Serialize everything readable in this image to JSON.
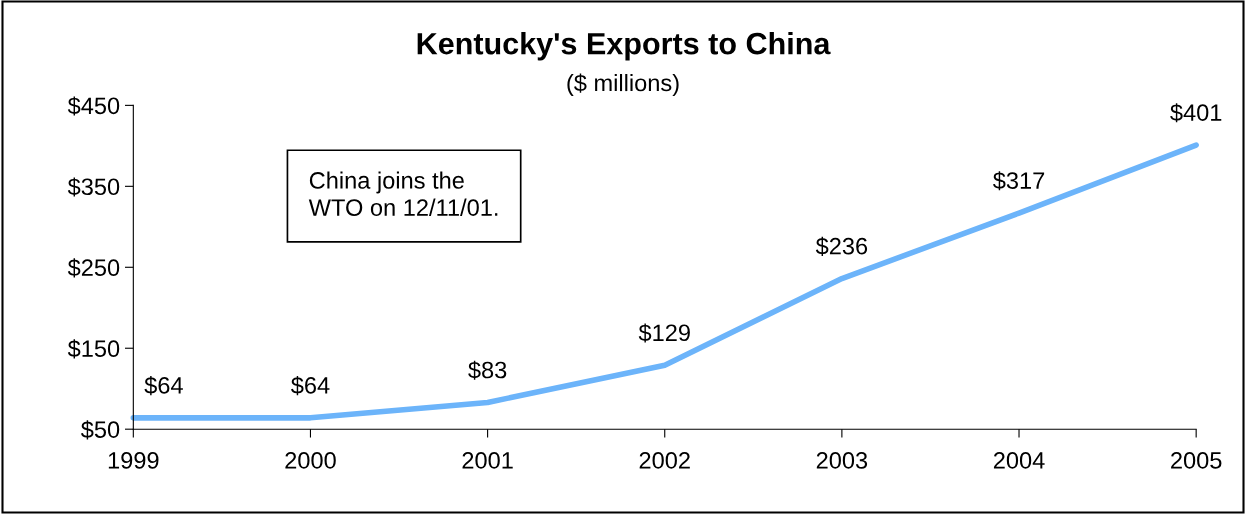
{
  "chart_data": {
    "type": "line",
    "title": "Kentucky's Exports to China",
    "subtitle": "($ millions)",
    "categories": [
      "1999",
      "2000",
      "2001",
      "2002",
      "2003",
      "2004",
      "2005"
    ],
    "series": [
      {
        "color": "#6cb4fa",
        "values": [
          64,
          64,
          83,
          129,
          236,
          317,
          401
        ],
        "value_labels": [
          "$64",
          "$64",
          "$83",
          "$129",
          "$236",
          "$317",
          "$401"
        ]
      }
    ],
    "ylim": [
      50,
      450
    ],
    "yticks": [
      {
        "value": 50,
        "label": "$50"
      },
      {
        "value": 150,
        "label": "$150"
      },
      {
        "value": 250,
        "label": "$250"
      },
      {
        "value": 350,
        "label": "$350"
      },
      {
        "value": 450,
        "label": "$450"
      }
    ],
    "annotations": [
      "China joins the\nWTO on 12/11/01."
    ],
    "grid": false,
    "legend": false,
    "marker": "none",
    "line_style": "solid"
  }
}
